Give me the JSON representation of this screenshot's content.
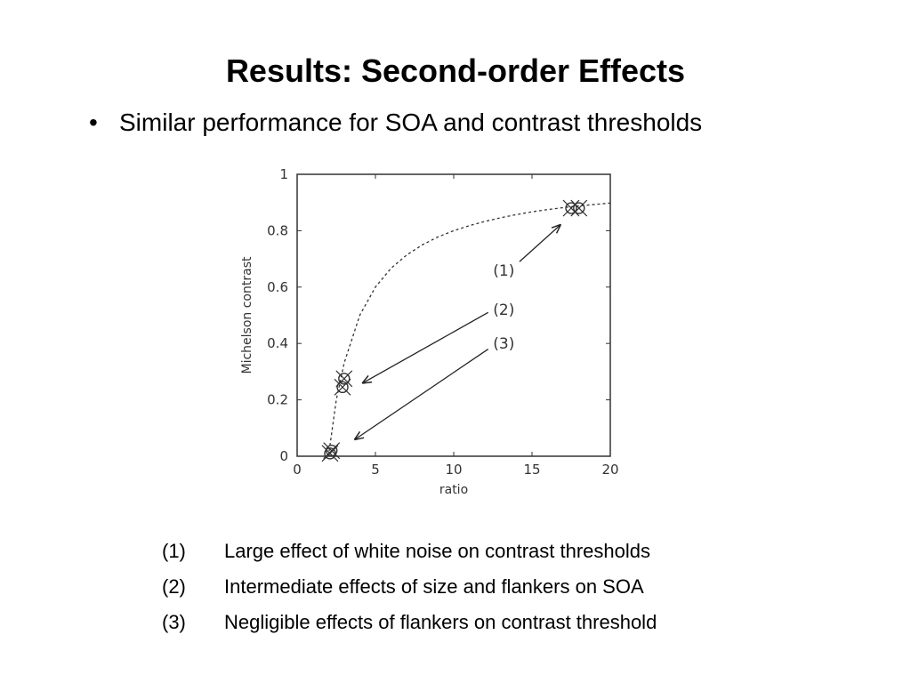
{
  "slide": {
    "title": "Results: Second-order Effects",
    "bullet_marker": "•",
    "bullet": "Similar performance for SOA and contrast thresholds"
  },
  "notes": [
    {
      "num": "(1)",
      "text": "Large effect of white noise on contrast thresholds"
    },
    {
      "num": "(2)",
      "text": "Intermediate effects of size and flankers on SOA"
    },
    {
      "num": "(3)",
      "text": "Negligible effects of flankers on contrast threshold"
    }
  ],
  "chart_data": {
    "type": "line",
    "xlabel": "ratio",
    "ylabel": "Michelson contrast",
    "xlim": [
      0,
      20
    ],
    "ylim": [
      0,
      1
    ],
    "xticks": [
      0,
      5,
      10,
      15,
      20
    ],
    "yticks": [
      0,
      0.2,
      0.4,
      0.6,
      0.8,
      1
    ],
    "curve": {
      "style": "dashed",
      "x": [
        2,
        2.5,
        3,
        4,
        5,
        6,
        7,
        8,
        9,
        10,
        11,
        12,
        13,
        14,
        15,
        16,
        17,
        18,
        19,
        20
      ],
      "y": [
        0,
        0.2,
        0.33,
        0.5,
        0.6,
        0.667,
        0.714,
        0.75,
        0.778,
        0.8,
        0.818,
        0.833,
        0.846,
        0.857,
        0.867,
        0.875,
        0.882,
        0.888,
        0.893,
        0.898
      ]
    },
    "markers": [
      {
        "x": 2.1,
        "y": 0.01
      },
      {
        "x": 2.2,
        "y": 0.02
      },
      {
        "x": 2.9,
        "y": 0.245
      },
      {
        "x": 3.0,
        "y": 0.275
      },
      {
        "x": 17.5,
        "y": 0.88
      },
      {
        "x": 18.0,
        "y": 0.88
      }
    ],
    "annotations": [
      {
        "label": "(1)",
        "text_x": 13.2,
        "text_y": 0.66,
        "from_x": 14.2,
        "from_y": 0.69,
        "to_x": 16.8,
        "to_y": 0.82
      },
      {
        "label": "(2)",
        "text_x": 13.2,
        "text_y": 0.52,
        "from_x": 12.2,
        "from_y": 0.51,
        "to_x": 4.2,
        "to_y": 0.26
      },
      {
        "label": "(3)",
        "text_x": 13.2,
        "text_y": 0.4,
        "from_x": 12.2,
        "from_y": 0.38,
        "to_x": 3.7,
        "to_y": 0.06
      }
    ]
  }
}
